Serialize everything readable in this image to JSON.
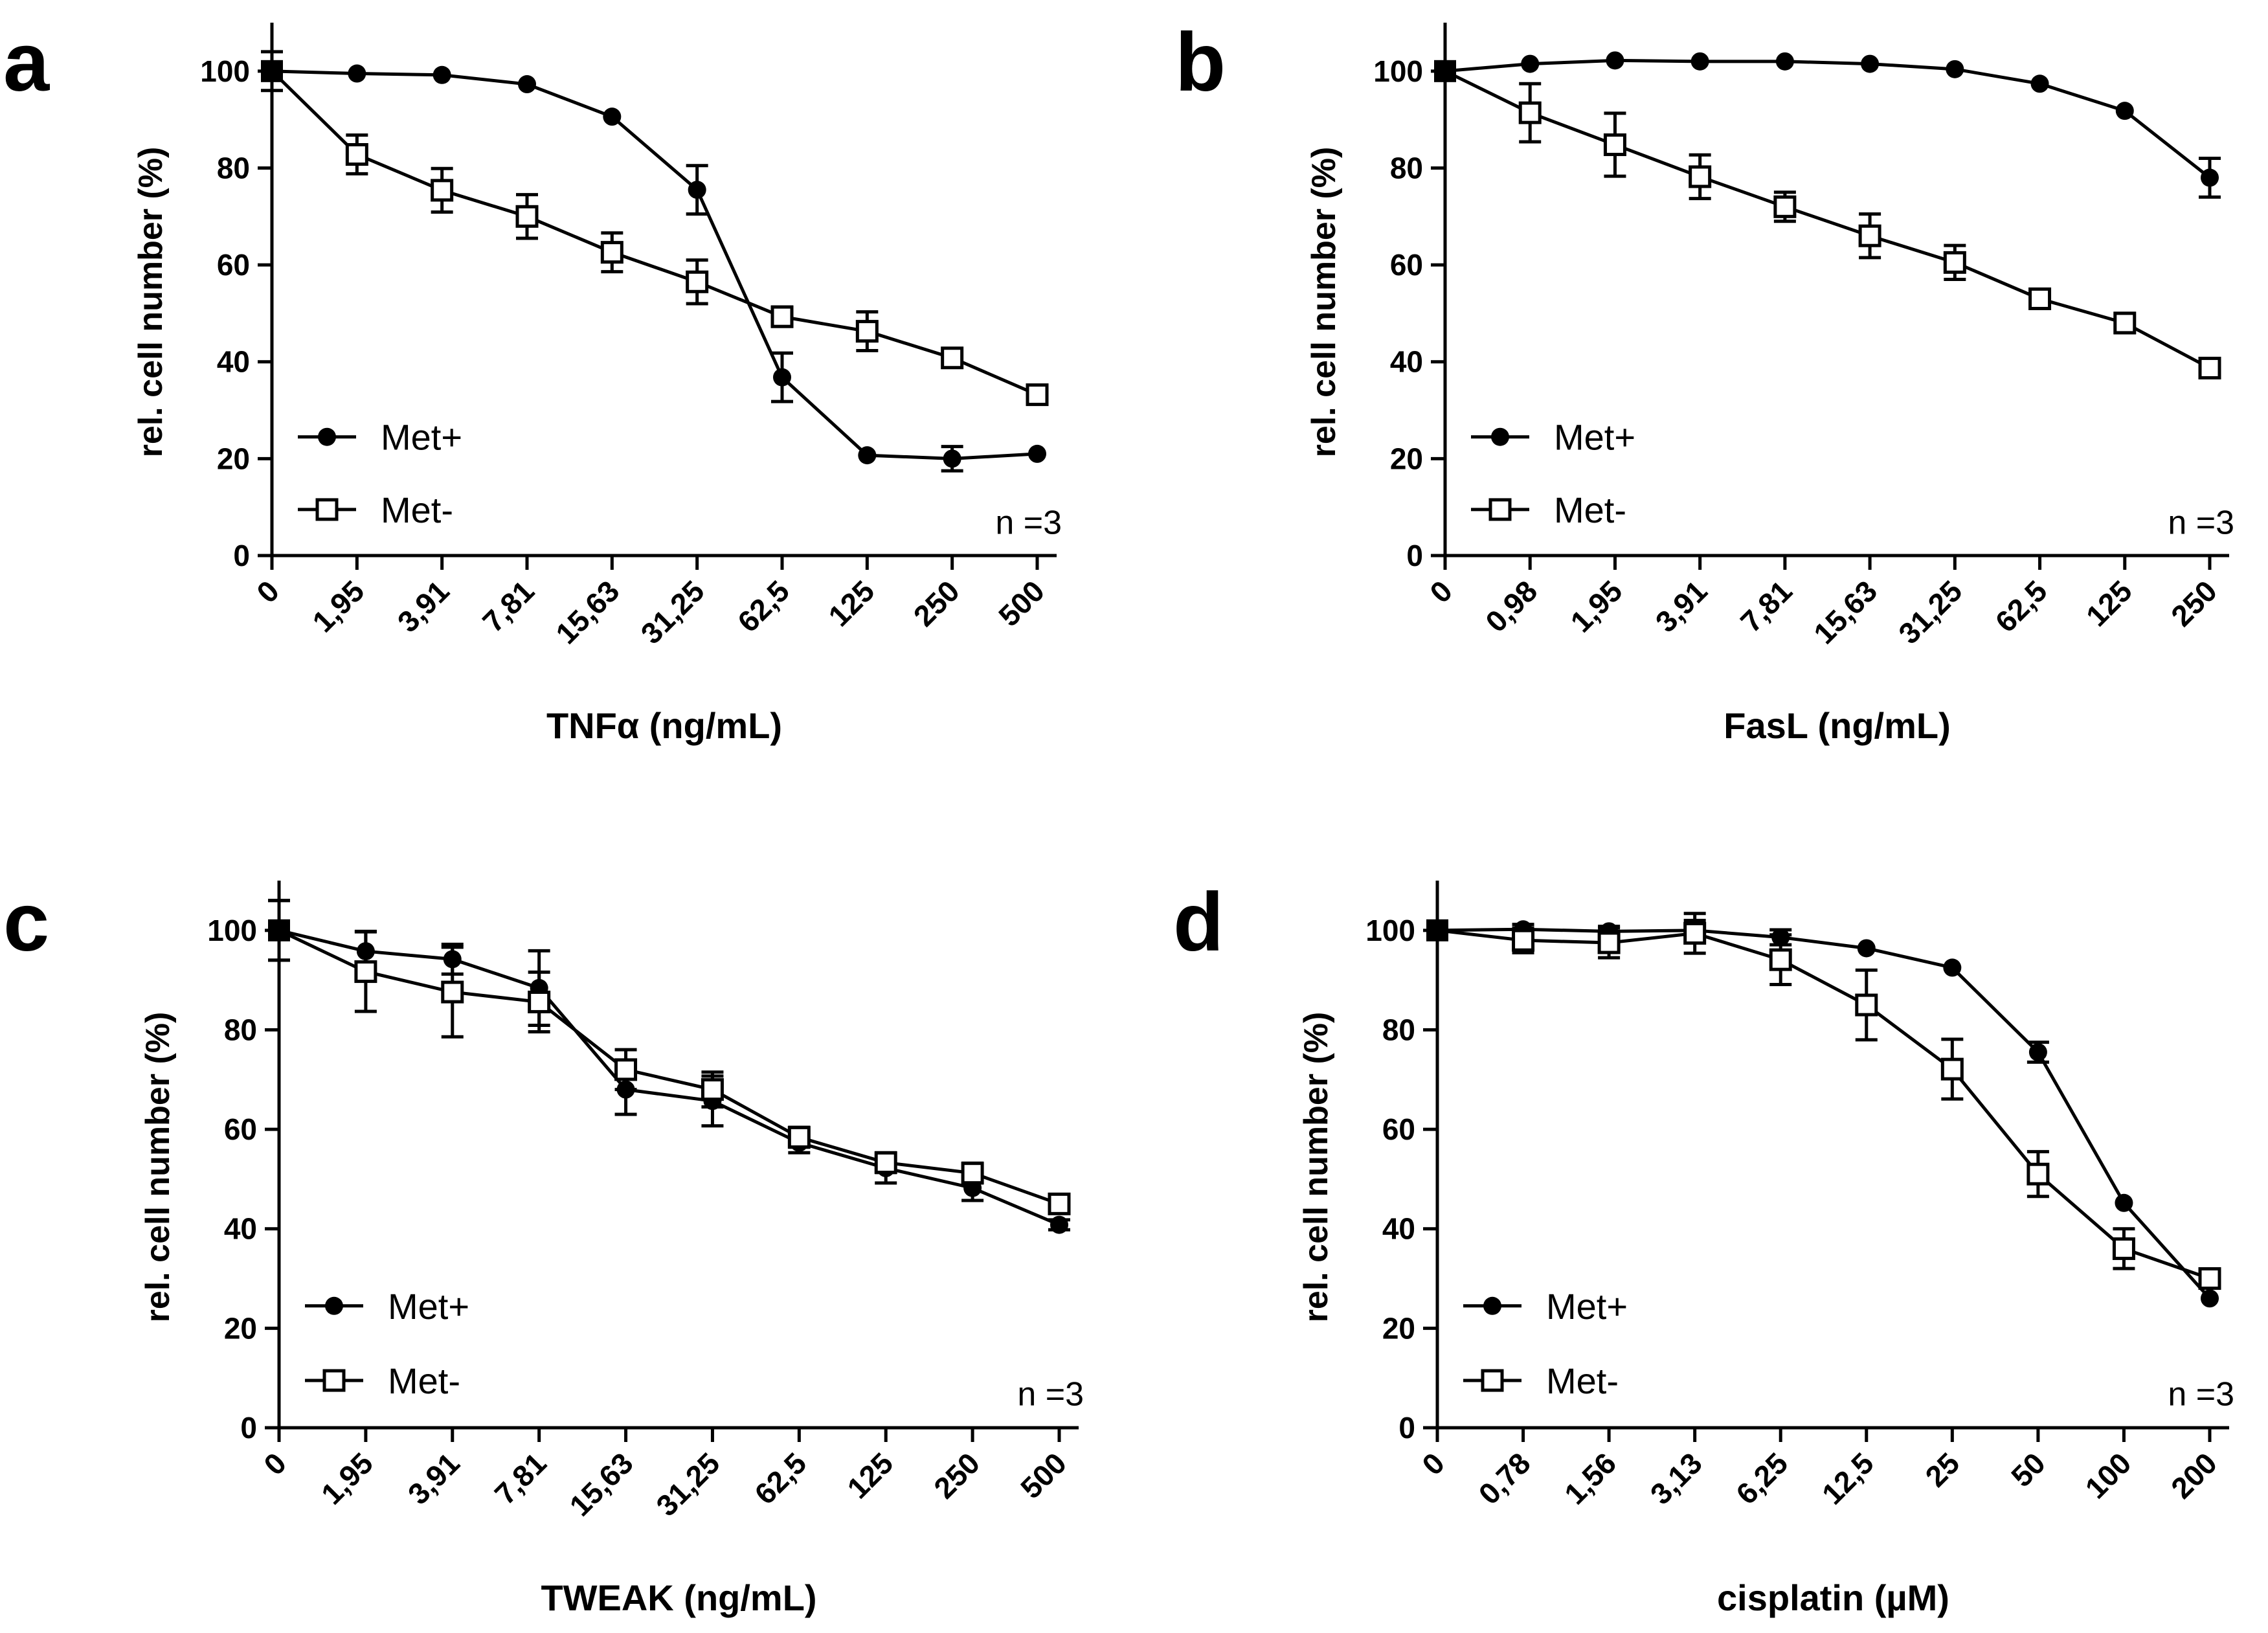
{
  "chart_data": [
    {
      "type": "line",
      "panel_label": "a",
      "xlabel": "TNFα (ng/mL)",
      "ylabel": "rel. cell number (%)",
      "ylim": [
        0,
        110
      ],
      "yticks": [
        "0",
        "20",
        "40",
        "60",
        "80",
        "100"
      ],
      "categories": [
        "0",
        "1,95",
        "3,91",
        "7,81",
        "15,63",
        "31,25",
        "62,5",
        "125",
        "250",
        "500"
      ],
      "annotation": "n =3",
      "legend_position": "bottom-left",
      "series": [
        {
          "name": "Met+",
          "marker": "filled-circle",
          "values": [
            100,
            99.5,
            99.2,
            97.3,
            90.6,
            75.5,
            36.8,
            20.7,
            20.0,
            21.0
          ],
          "errors": [
            0,
            0,
            0,
            0,
            0,
            5,
            5,
            0,
            2.5,
            0
          ]
        },
        {
          "name": "Met-",
          "marker": "open-square",
          "values": [
            100,
            82.8,
            75.4,
            70.0,
            62.6,
            56.5,
            49.3,
            46.3,
            40.8,
            33.2
          ],
          "errors": [
            4,
            4,
            4.5,
            4.5,
            4,
            4.5,
            2,
            4,
            1.5,
            1.5
          ]
        }
      ]
    },
    {
      "type": "line",
      "panel_label": "b",
      "xlabel": "FasL (ng/mL)",
      "ylabel": "rel. cell number (%)",
      "ylim": [
        0,
        110
      ],
      "yticks": [
        "0",
        "20",
        "40",
        "60",
        "80",
        "100"
      ],
      "categories": [
        "0",
        "0,98",
        "1,95",
        "3,91",
        "7,81",
        "15,63",
        "31,25",
        "62,5",
        "125",
        "250"
      ],
      "annotation": "n =3",
      "legend_position": "bottom-left",
      "series": [
        {
          "name": "Met+",
          "marker": "filled-circle",
          "values": [
            100,
            101.5,
            102.2,
            102.0,
            102.0,
            101.5,
            100.4,
            97.4,
            91.8,
            78.0
          ],
          "errors": [
            0,
            0,
            0,
            0,
            0,
            0,
            0,
            0,
            0,
            4
          ]
        },
        {
          "name": "Met-",
          "marker": "open-square",
          "values": [
            100,
            91.4,
            84.8,
            78.2,
            72.0,
            66.0,
            60.5,
            53.0,
            48.0,
            38.7
          ],
          "errors": [
            1.5,
            6,
            6.5,
            4.5,
            3,
            4.5,
            3.5,
            2,
            2,
            1.5
          ]
        }
      ]
    },
    {
      "type": "line",
      "panel_label": "c",
      "xlabel": "TWEAK (ng/mL)",
      "ylabel": "rel. cell number (%)",
      "ylim": [
        0,
        110
      ],
      "yticks": [
        "0",
        "20",
        "40",
        "60",
        "80",
        "100"
      ],
      "categories": [
        "0",
        "1,95",
        "3,91",
        "7,81",
        "15,63",
        "31,25",
        "62,5",
        "125",
        "250",
        "500"
      ],
      "annotation": "n =3",
      "legend_position": "bottom-left",
      "series": [
        {
          "name": "Met+",
          "marker": "filled-circle",
          "values": [
            100,
            95.8,
            94.2,
            88.4,
            68.0,
            65.7,
            57.3,
            52.2,
            48.2,
            40.8
          ],
          "errors": [
            6,
            4,
            3,
            7.5,
            5,
            5,
            2,
            3,
            2.5,
            1
          ]
        },
        {
          "name": "Met-",
          "marker": "open-square",
          "values": [
            100,
            91.7,
            87.6,
            85.6,
            72.0,
            68.0,
            58.4,
            53.3,
            51.2,
            45.0
          ],
          "errors": [
            6,
            8,
            9,
            6,
            4,
            3.5,
            2,
            2,
            2,
            1.5
          ]
        }
      ]
    },
    {
      "type": "line",
      "panel_label": "d",
      "xlabel": "cisplatin (µM)",
      "ylabel": "rel. cell number (%)",
      "ylim": [
        0,
        110
      ],
      "yticks": [
        "0",
        "20",
        "40",
        "60",
        "80",
        "100"
      ],
      "categories": [
        "0",
        "0,78",
        "1,56",
        "3,13",
        "6,25",
        "12,5",
        "25",
        "50",
        "100",
        "200"
      ],
      "annotation": "n =3",
      "legend_position": "bottom-left",
      "series": [
        {
          "name": "Met+",
          "marker": "filled-circle",
          "values": [
            100,
            100.2,
            99.8,
            100.0,
            98.6,
            96.4,
            92.5,
            75.5,
            45.2,
            26.0
          ],
          "errors": [
            0,
            1,
            1,
            2,
            1.5,
            0,
            0,
            2,
            0,
            0
          ]
        },
        {
          "name": "Met-",
          "marker": "open-square",
          "values": [
            100,
            98.0,
            97.5,
            99.4,
            94.1,
            85.0,
            72.1,
            51.0,
            36.0,
            30.0
          ],
          "errors": [
            1,
            2.5,
            3,
            4,
            5,
            7,
            6,
            4.5,
            4,
            1
          ]
        }
      ]
    }
  ]
}
